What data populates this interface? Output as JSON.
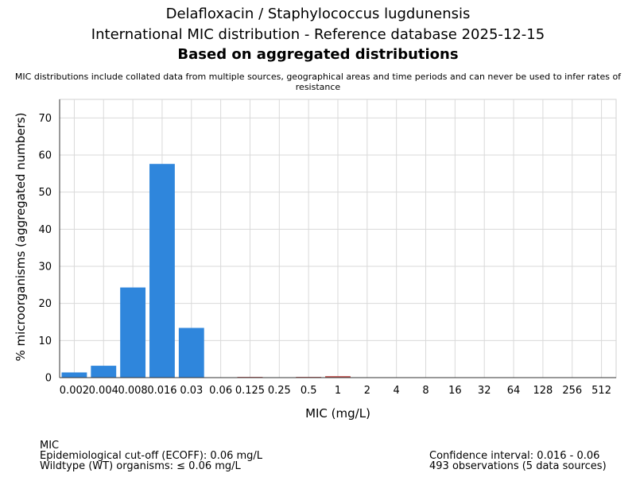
{
  "header": {
    "title_line1": "Delafloxacin / Staphylococcus lugdunensis",
    "title_line2": "International MIC distribution - Reference database 2025-12-15",
    "title_line3": "Based on aggregated distributions",
    "note": "MIC distributions include collated data from multiple sources, geographical areas and time periods and can never be used to infer rates of resistance"
  },
  "chart_data": {
    "type": "bar",
    "categories": [
      "0.002",
      "0.004",
      "0.008",
      "0.016",
      "0.03",
      "0.06",
      "0.125",
      "0.25",
      "0.5",
      "1",
      "2",
      "4",
      "8",
      "16",
      "32",
      "64",
      "128",
      "256",
      "512"
    ],
    "values": [
      1.4,
      3.2,
      24.3,
      57.6,
      13.4,
      0,
      0.2,
      0,
      0.2,
      0.4,
      0,
      0,
      0,
      0,
      0,
      0,
      0,
      0,
      0
    ],
    "bar_colors": [
      "#2f86dc",
      "#2f86dc",
      "#2f86dc",
      "#2f86dc",
      "#2f86dc",
      "#2f86dc",
      "#c0504d",
      "#c0504d",
      "#c0504d",
      "#c0504d",
      "#c0504d",
      "#c0504d",
      "#c0504d",
      "#c0504d",
      "#c0504d",
      "#c0504d",
      "#c0504d",
      "#c0504d",
      "#c0504d"
    ],
    "xlabel": "MIC (mg/L)",
    "ylabel": "% microorganisms (aggregated numbers)",
    "ylim": [
      0,
      75
    ],
    "yticks": [
      0,
      10,
      20,
      30,
      40,
      50,
      60,
      70
    ],
    "grid": true
  },
  "footer": {
    "mic_label": "MIC",
    "ecoff": "Epidemiological cut-off (ECOFF): 0.06 mg/L",
    "wildtype": "Wildtype (WT) organisms: ≤ 0.06 mg/L",
    "confidence": "Confidence interval: 0.016 - 0.06",
    "observations": "493 observations (5 data sources)"
  }
}
